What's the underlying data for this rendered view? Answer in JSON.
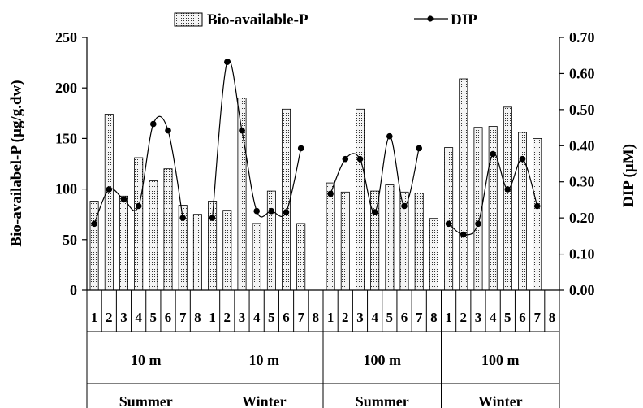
{
  "chart_data": {
    "type": "bar",
    "legend_position": "top",
    "grid": false,
    "categories": [
      "1",
      "2",
      "3",
      "4",
      "5",
      "6",
      "7",
      "8",
      "1",
      "2",
      "3",
      "4",
      "5",
      "6",
      "7",
      "8",
      "1",
      "2",
      "3",
      "4",
      "5",
      "6",
      "7",
      "8",
      "1",
      "2",
      "3",
      "4",
      "5",
      "6",
      "7",
      "8"
    ],
    "groups": [
      {
        "depth": "10 m",
        "season": "Summer"
      },
      {
        "depth": "10 m",
        "season": "Winter"
      },
      {
        "depth": "100 m",
        "season": "Summer"
      },
      {
        "depth": "100 m",
        "season": "Winter"
      }
    ],
    "series": [
      {
        "name": "Bio-available-P",
        "type": "bar",
        "axis": "left",
        "values": [
          88,
          174,
          93,
          131,
          108,
          120,
          84,
          75,
          88,
          79,
          190,
          66,
          98,
          179,
          66,
          null,
          106,
          97,
          179,
          98,
          104,
          97,
          96,
          71,
          141,
          209,
          161,
          162,
          181,
          156,
          150,
          null
        ]
      },
      {
        "name": "DIP",
        "type": "line",
        "axis": "right",
        "values": [
          0.184,
          0.279,
          0.251,
          0.233,
          0.46,
          0.442,
          0.2,
          null,
          0.2,
          0.632,
          0.442,
          0.219,
          0.219,
          0.216,
          0.393,
          null,
          0.267,
          0.363,
          0.363,
          0.216,
          0.426,
          0.233,
          0.393,
          null,
          0.184,
          0.154,
          0.184,
          0.377,
          0.279,
          0.363,
          0.233,
          null
        ]
      }
    ],
    "y_left": {
      "label": "Bio-availabel-P (µg/g.dw)",
      "lim": [
        0,
        250
      ],
      "ticks": [
        "0",
        "50",
        "100",
        "150",
        "200",
        "250"
      ]
    },
    "y_right": {
      "label": "DIP (µM)",
      "lim": [
        0,
        0.7
      ],
      "ticks": [
        "0.00",
        "0.10",
        "0.20",
        "0.30",
        "0.40",
        "0.50",
        "0.60",
        "0.70"
      ]
    },
    "colors": {
      "bar_fill": "#f4f4f4",
      "bar_dots": "#333333",
      "line": "#000000"
    }
  }
}
